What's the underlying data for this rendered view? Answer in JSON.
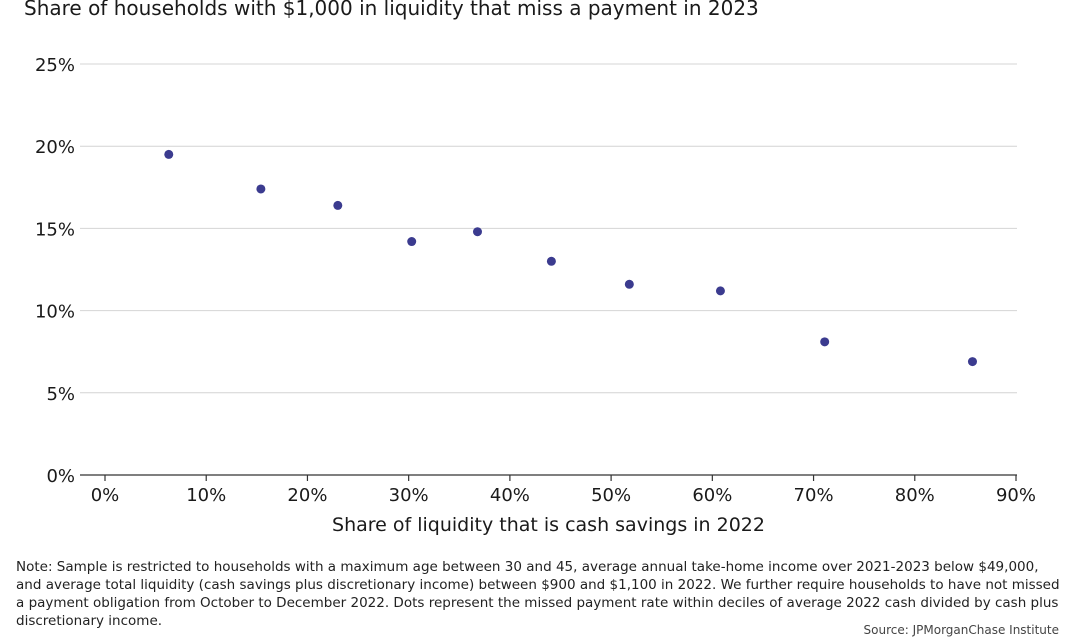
{
  "chart_data": {
    "type": "scatter",
    "title": "Share of households with $1,000 in liquidity that miss a payment in 2023",
    "xlabel": "Share of liquidity that is cash savings in 2022",
    "ylabel": "",
    "xlim": [
      0,
      90
    ],
    "ylim": [
      0,
      25
    ],
    "x_ticks": [
      "0%",
      "10%",
      "20%",
      "30%",
      "40%",
      "50%",
      "60%",
      "70%",
      "80%",
      "90%"
    ],
    "y_ticks": [
      "0%",
      "5%",
      "10%",
      "15%",
      "20%",
      "25%"
    ],
    "grid": "horizontal",
    "point_color": "#3b3b8f",
    "points": [
      {
        "x": 6.3,
        "y": 19.5
      },
      {
        "x": 15.4,
        "y": 17.4
      },
      {
        "x": 23.0,
        "y": 16.4
      },
      {
        "x": 30.3,
        "y": 14.2
      },
      {
        "x": 36.8,
        "y": 14.8
      },
      {
        "x": 44.1,
        "y": 13.0
      },
      {
        "x": 51.8,
        "y": 11.6
      },
      {
        "x": 60.8,
        "y": 11.2
      },
      {
        "x": 71.1,
        "y": 8.1
      },
      {
        "x": 85.7,
        "y": 6.9
      }
    ]
  },
  "note": "Note: Sample is restricted to households with a maximum age between 30 and 45, average annual take-home income over 2021-2023 below $49,000, and average total liquidity (cash savings plus discretionary income) between $900 and $1,100 in 2022. We further require households to have not missed a payment obligation from October to December 2022. Dots represent the missed payment rate within deciles of average 2022 cash divided by cash plus discretionary income.",
  "source": "Source: JPMorganChase Institute"
}
